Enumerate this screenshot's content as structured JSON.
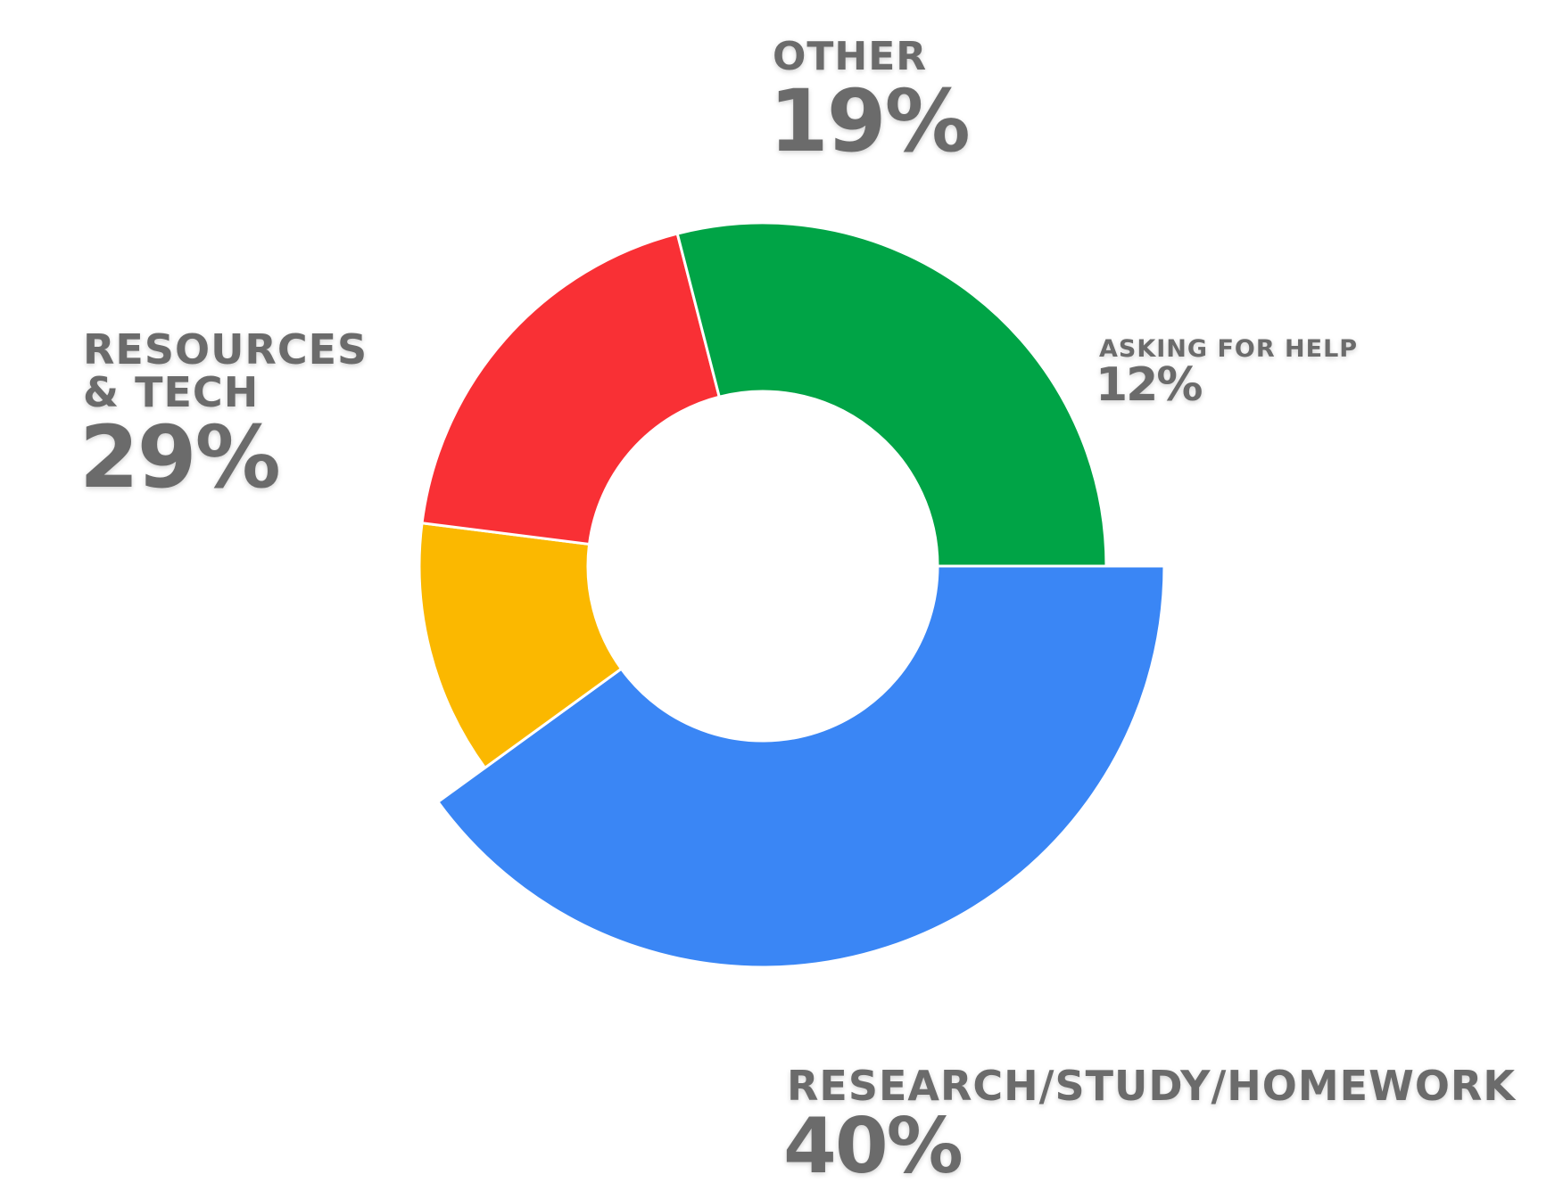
{
  "chart_data": {
    "type": "donut",
    "categories": [
      "RESEARCH/STUDY/HOMEWORK",
      "ASKING FOR HELP",
      "OTHER",
      "RESOURCES & TECH"
    ],
    "values": [
      40,
      12,
      19,
      29
    ],
    "value_labels": [
      "40%",
      "12%",
      "19%",
      "29%"
    ],
    "colors": [
      "#3a86f5",
      "#fbb800",
      "#f93035",
      "#00a446"
    ]
  }
}
